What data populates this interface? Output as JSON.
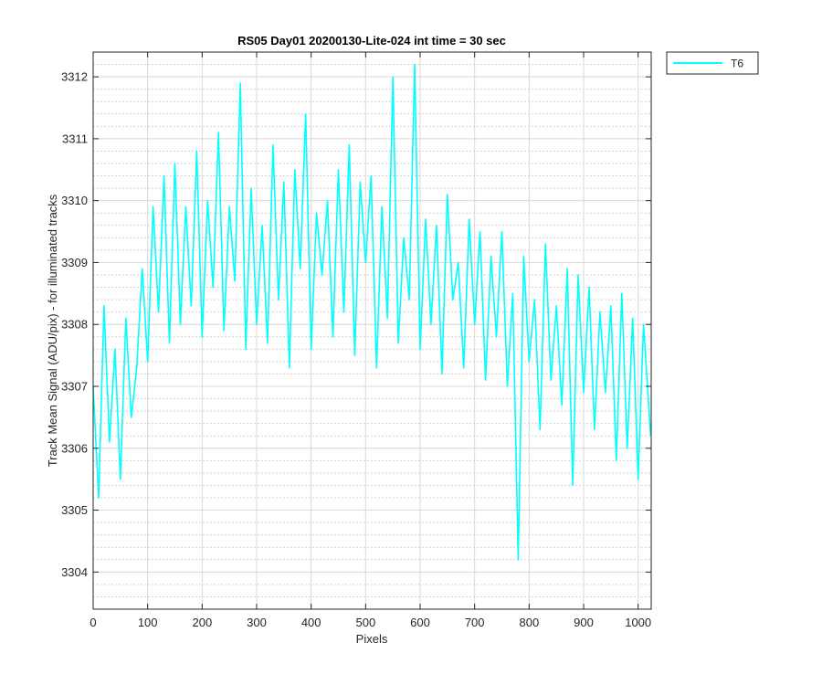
{
  "chart_data": {
    "type": "line",
    "title": "RS05 Day01 20200130-Lite-024 int time = 30 sec",
    "xlabel": "Pixels",
    "ylabel": "Track Mean Signal (ADU/pix) - for illuminated tracks",
    "xlim": [
      0,
      1024
    ],
    "ylim": [
      3303.4,
      3312.4
    ],
    "xticks": [
      0,
      100,
      200,
      300,
      400,
      500,
      600,
      700,
      800,
      900,
      1000
    ],
    "xtick_labels": [
      "0",
      "100",
      "200",
      "300",
      "400",
      "500",
      "600",
      "700",
      "800",
      "900",
      "1000"
    ],
    "yticks": [
      3304,
      3305,
      3306,
      3307,
      3308,
      3309,
      3310,
      3311,
      3312
    ],
    "ytick_labels": [
      "3304",
      "3305",
      "3306",
      "3307",
      "3308",
      "3309",
      "3310",
      "3311",
      "3312"
    ],
    "minor_y_step": 0.2,
    "grid": true,
    "legend_position": "outside-top-right",
    "series": [
      {
        "name": "T6",
        "color": "#00ffff",
        "x": [
          0,
          10,
          20,
          30,
          40,
          50,
          60,
          70,
          80,
          90,
          100,
          110,
          120,
          130,
          140,
          150,
          160,
          170,
          180,
          190,
          200,
          210,
          220,
          230,
          240,
          250,
          260,
          270,
          280,
          290,
          300,
          310,
          320,
          330,
          340,
          350,
          360,
          370,
          380,
          390,
          400,
          410,
          420,
          430,
          440,
          450,
          460,
          470,
          480,
          490,
          500,
          510,
          520,
          530,
          540,
          550,
          560,
          570,
          580,
          590,
          600,
          610,
          620,
          630,
          640,
          650,
          660,
          670,
          680,
          690,
          700,
          710,
          720,
          730,
          740,
          750,
          760,
          770,
          780,
          790,
          800,
          810,
          820,
          830,
          840,
          850,
          860,
          870,
          880,
          890,
          900,
          910,
          920,
          930,
          940,
          950,
          960,
          970,
          980,
          990,
          1000,
          1010,
          1023
        ],
        "values": [
          3307.0,
          3305.2,
          3308.3,
          3306.1,
          3307.6,
          3305.5,
          3308.1,
          3306.5,
          3307.3,
          3308.9,
          3307.4,
          3309.9,
          3308.2,
          3310.4,
          3307.7,
          3310.6,
          3308.0,
          3309.9,
          3308.3,
          3310.8,
          3307.8,
          3310.0,
          3308.6,
          3311.1,
          3307.9,
          3309.9,
          3308.7,
          3311.9,
          3307.6,
          3310.2,
          3308.0,
          3309.6,
          3307.7,
          3310.9,
          3308.4,
          3310.3,
          3307.3,
          3310.5,
          3308.9,
          3311.4,
          3307.6,
          3309.8,
          3308.8,
          3310.0,
          3307.8,
          3310.5,
          3308.2,
          3310.9,
          3307.5,
          3310.3,
          3309.0,
          3310.4,
          3307.3,
          3309.9,
          3308.1,
          3312.0,
          3307.7,
          3309.4,
          3308.4,
          3312.2,
          3307.6,
          3309.7,
          3308.0,
          3309.6,
          3307.2,
          3310.1,
          3308.4,
          3309.0,
          3307.3,
          3309.7,
          3308.0,
          3309.5,
          3307.1,
          3309.1,
          3307.8,
          3309.5,
          3307.0,
          3308.5,
          3304.2,
          3309.1,
          3307.4,
          3308.4,
          3306.3,
          3309.3,
          3307.1,
          3308.3,
          3306.7,
          3308.9,
          3305.4,
          3308.8,
          3306.9,
          3308.6,
          3306.3,
          3308.2,
          3306.9,
          3308.3,
          3305.8,
          3308.5,
          3306.0,
          3308.1,
          3305.5,
          3308.0,
          3306.2
        ]
      }
    ]
  }
}
